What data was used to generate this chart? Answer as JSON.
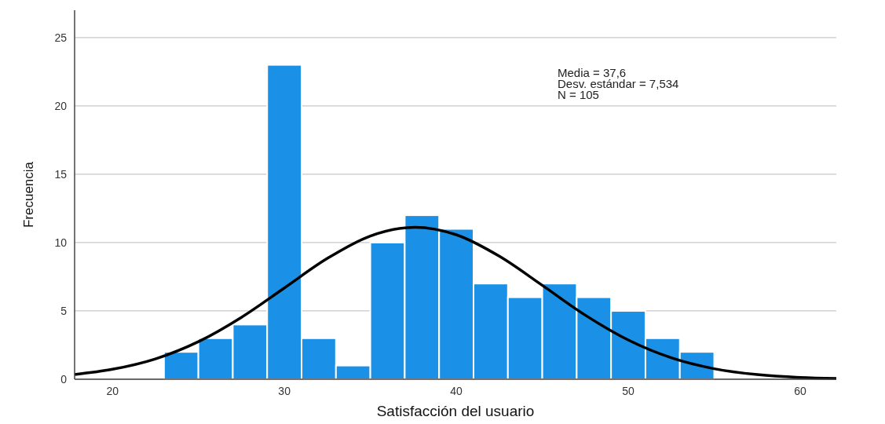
{
  "chart_data": {
    "type": "histogram",
    "xlabel": "Satisfacción del usuario",
    "ylabel": "Frecuencia",
    "bins": [
      23,
      25,
      27,
      29,
      31,
      33,
      35,
      37,
      39,
      41,
      43,
      45,
      47,
      49,
      51,
      53,
      55
    ],
    "series": [
      {
        "color": "#1a91e6",
        "values": [
          2,
          3,
          4,
          23,
          3,
          1,
          10,
          12,
          11,
          7,
          6,
          7,
          6,
          5,
          3,
          2
        ]
      },
      {
        "type": "line",
        "color": "#000000",
        "x": [
          17.8,
          20,
          22.5,
          25,
          27.5,
          30,
          32.5,
          35,
          37.6,
          40,
          42.5,
          45,
          47.5,
          50,
          52.5,
          55,
          57.5,
          60,
          62.1
        ],
        "values": [
          0.35,
          0.73,
          1.49,
          2.75,
          4.53,
          6.68,
          8.84,
          10.48,
          11.12,
          10.57,
          9.0,
          6.87,
          4.69,
          2.87,
          1.57,
          0.77,
          0.34,
          0.13,
          0.06
        ]
      }
    ],
    "annotations": [
      "Media = 37,6",
      "Desv. estándar = 7,534",
      "N = 105"
    ],
    "xlim": [
      17.8,
      62.1
    ],
    "xticks": [
      20,
      30,
      40,
      50,
      60
    ],
    "ylim": [
      0,
      27
    ],
    "yticks": [
      0,
      5,
      10,
      15,
      20,
      25
    ],
    "grid": "y",
    "marker": "none",
    "line_style": "solid"
  }
}
